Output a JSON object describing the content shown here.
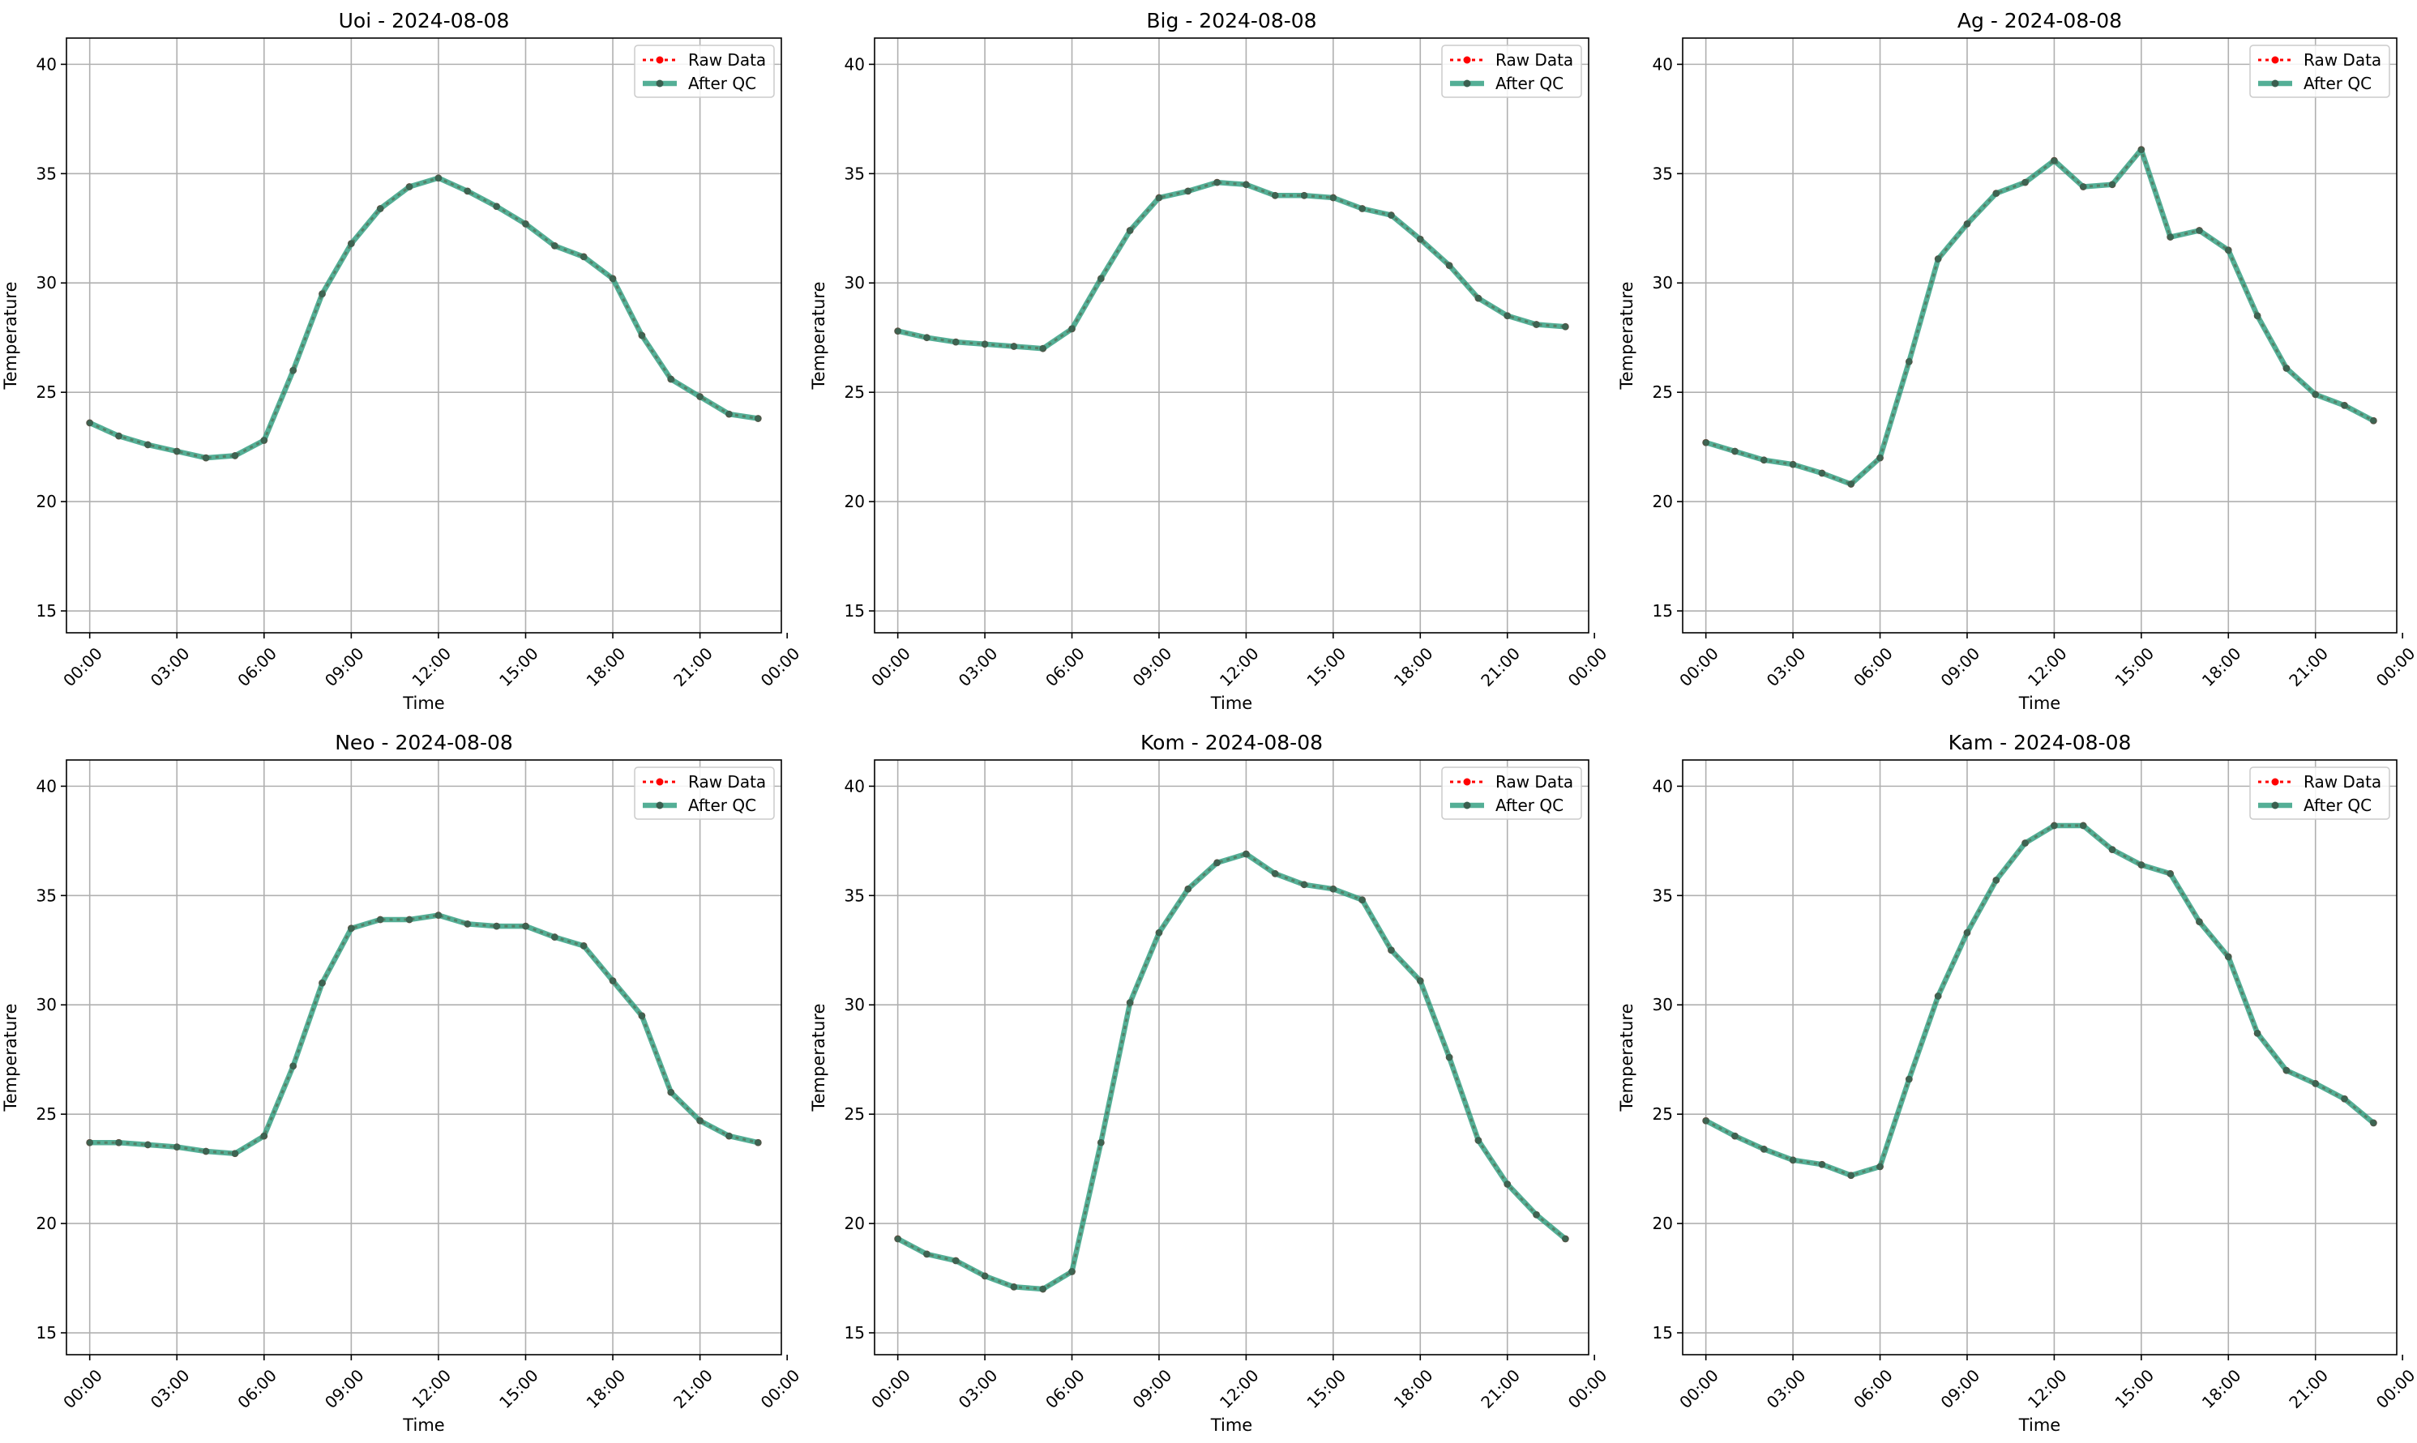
{
  "figure": {
    "colors": {
      "raw": "#ff0000",
      "qc": "#2e9e7f",
      "qc_marker": "#3a5f4f",
      "grid": "#b0b0b0",
      "legend_border": "#cccccc"
    },
    "legend": {
      "position": "upper right",
      "entries": [
        "Raw Data",
        "After QC"
      ]
    }
  },
  "chart_data": [
    {
      "type": "line",
      "title": "Uoi - 2024-08-08",
      "xlabel": "Time",
      "ylabel": "Temperature",
      "xlim": [
        -0.8,
        23.8
      ],
      "ylim": [
        14,
        41.2
      ],
      "x_ticks": [
        0,
        3,
        6,
        9,
        12,
        15,
        18,
        21,
        24
      ],
      "x_tick_labels": [
        "00:00",
        "03:00",
        "06:00",
        "09:00",
        "12:00",
        "15:00",
        "18:00",
        "21:00",
        "00:00"
      ],
      "y_ticks": [
        15,
        20,
        25,
        30,
        35,
        40
      ],
      "grid": true,
      "x": [
        0,
        1,
        2,
        3,
        4,
        5,
        6,
        7,
        8,
        9,
        10,
        11,
        12,
        13,
        14,
        15,
        16,
        17,
        18,
        19,
        20,
        21,
        22,
        23
      ],
      "series": [
        {
          "name": "Raw Data",
          "values": [
            23.6,
            23.0,
            22.6,
            22.3,
            22.0,
            22.1,
            22.8,
            26.0,
            29.5,
            31.8,
            33.4,
            34.4,
            34.8,
            34.2,
            33.5,
            32.7,
            31.7,
            31.2,
            30.2,
            27.6,
            25.6,
            24.8,
            24.0,
            23.8
          ]
        },
        {
          "name": "After QC",
          "values": [
            23.6,
            23.0,
            22.6,
            22.3,
            22.0,
            22.1,
            22.8,
            26.0,
            29.5,
            31.8,
            33.4,
            34.4,
            34.8,
            34.2,
            33.5,
            32.7,
            31.7,
            31.2,
            30.2,
            27.6,
            25.6,
            24.8,
            24.0,
            23.8
          ]
        }
      ]
    },
    {
      "type": "line",
      "title": "Big - 2024-08-08",
      "xlabel": "Time",
      "ylabel": "Temperature",
      "xlim": [
        -0.8,
        23.8
      ],
      "ylim": [
        14,
        41.2
      ],
      "x_ticks": [
        0,
        3,
        6,
        9,
        12,
        15,
        18,
        21,
        24
      ],
      "x_tick_labels": [
        "00:00",
        "03:00",
        "06:00",
        "09:00",
        "12:00",
        "15:00",
        "18:00",
        "21:00",
        "00:00"
      ],
      "y_ticks": [
        15,
        20,
        25,
        30,
        35,
        40
      ],
      "grid": true,
      "x": [
        0,
        1,
        2,
        3,
        4,
        5,
        6,
        7,
        8,
        9,
        10,
        11,
        12,
        13,
        14,
        15,
        16,
        17,
        18,
        19,
        20,
        21,
        22,
        23
      ],
      "series": [
        {
          "name": "Raw Data",
          "values": [
            27.8,
            27.5,
            27.3,
            27.2,
            27.1,
            27.0,
            27.9,
            30.2,
            32.4,
            33.9,
            34.2,
            34.6,
            34.5,
            34.0,
            34.0,
            33.9,
            33.4,
            33.1,
            32.0,
            30.8,
            29.3,
            28.5,
            28.1,
            28.0
          ]
        },
        {
          "name": "After QC",
          "values": [
            27.8,
            27.5,
            27.3,
            27.2,
            27.1,
            27.0,
            27.9,
            30.2,
            32.4,
            33.9,
            34.2,
            34.6,
            34.5,
            34.0,
            34.0,
            33.9,
            33.4,
            33.1,
            32.0,
            30.8,
            29.3,
            28.5,
            28.1,
            28.0
          ]
        }
      ]
    },
    {
      "type": "line",
      "title": "Ag - 2024-08-08",
      "xlabel": "Time",
      "ylabel": "Temperature",
      "xlim": [
        -0.8,
        23.8
      ],
      "ylim": [
        14,
        41.2
      ],
      "x_ticks": [
        0,
        3,
        6,
        9,
        12,
        15,
        18,
        21,
        24
      ],
      "x_tick_labels": [
        "00:00",
        "03:00",
        "06:00",
        "09:00",
        "12:00",
        "15:00",
        "18:00",
        "21:00",
        "00:00"
      ],
      "y_ticks": [
        15,
        20,
        25,
        30,
        35,
        40
      ],
      "grid": true,
      "x": [
        0,
        1,
        2,
        3,
        4,
        5,
        6,
        7,
        8,
        9,
        10,
        11,
        12,
        13,
        14,
        15,
        16,
        17,
        18,
        19,
        20,
        21,
        22,
        23
      ],
      "series": [
        {
          "name": "Raw Data",
          "values": [
            22.7,
            22.3,
            21.9,
            21.7,
            21.3,
            20.8,
            22.0,
            26.4,
            31.1,
            32.7,
            34.1,
            34.6,
            35.6,
            34.4,
            34.5,
            36.1,
            32.1,
            32.4,
            31.5,
            28.5,
            26.1,
            24.9,
            24.4,
            23.7
          ]
        },
        {
          "name": "After QC",
          "values": [
            22.7,
            22.3,
            21.9,
            21.7,
            21.3,
            20.8,
            22.0,
            26.4,
            31.1,
            32.7,
            34.1,
            34.6,
            35.6,
            34.4,
            34.5,
            36.1,
            32.1,
            32.4,
            31.5,
            28.5,
            26.1,
            24.9,
            24.4,
            23.7
          ]
        }
      ]
    },
    {
      "type": "line",
      "title": "Neo - 2024-08-08",
      "xlabel": "Time",
      "ylabel": "Temperature",
      "xlim": [
        -0.8,
        23.8
      ],
      "ylim": [
        14,
        41.2
      ],
      "x_ticks": [
        0,
        3,
        6,
        9,
        12,
        15,
        18,
        21,
        24
      ],
      "x_tick_labels": [
        "00:00",
        "03:00",
        "06:00",
        "09:00",
        "12:00",
        "15:00",
        "18:00",
        "21:00",
        "00:00"
      ],
      "y_ticks": [
        15,
        20,
        25,
        30,
        35,
        40
      ],
      "grid": true,
      "x": [
        0,
        1,
        2,
        3,
        4,
        5,
        6,
        7,
        8,
        9,
        10,
        11,
        12,
        13,
        14,
        15,
        16,
        17,
        18,
        19,
        20,
        21,
        22,
        23
      ],
      "series": [
        {
          "name": "Raw Data",
          "values": [
            23.7,
            23.7,
            23.6,
            23.5,
            23.3,
            23.2,
            24.0,
            27.2,
            31.0,
            33.5,
            33.9,
            33.9,
            34.1,
            33.7,
            33.6,
            33.6,
            33.1,
            32.7,
            31.1,
            29.5,
            26.0,
            24.7,
            24.0,
            23.7
          ]
        },
        {
          "name": "After QC",
          "values": [
            23.7,
            23.7,
            23.6,
            23.5,
            23.3,
            23.2,
            24.0,
            27.2,
            31.0,
            33.5,
            33.9,
            33.9,
            34.1,
            33.7,
            33.6,
            33.6,
            33.1,
            32.7,
            31.1,
            29.5,
            26.0,
            24.7,
            24.0,
            23.7
          ]
        }
      ]
    },
    {
      "type": "line",
      "title": "Kom - 2024-08-08",
      "xlabel": "Time",
      "ylabel": "Temperature",
      "xlim": [
        -0.8,
        23.8
      ],
      "ylim": [
        14,
        41.2
      ],
      "x_ticks": [
        0,
        3,
        6,
        9,
        12,
        15,
        18,
        21,
        24
      ],
      "x_tick_labels": [
        "00:00",
        "03:00",
        "06:00",
        "09:00",
        "12:00",
        "15:00",
        "18:00",
        "21:00",
        "00:00"
      ],
      "y_ticks": [
        15,
        20,
        25,
        30,
        35,
        40
      ],
      "grid": true,
      "x": [
        0,
        1,
        2,
        3,
        4,
        5,
        6,
        7,
        8,
        9,
        10,
        11,
        12,
        13,
        14,
        15,
        16,
        17,
        18,
        19,
        20,
        21,
        22,
        23
      ],
      "series": [
        {
          "name": "Raw Data",
          "values": [
            19.3,
            18.6,
            18.3,
            17.6,
            17.1,
            17.0,
            17.8,
            23.7,
            30.1,
            33.3,
            35.3,
            36.5,
            36.9,
            36.0,
            35.5,
            35.3,
            34.8,
            32.5,
            31.1,
            27.6,
            23.8,
            21.8,
            20.4,
            19.3
          ]
        },
        {
          "name": "After QC",
          "values": [
            19.3,
            18.6,
            18.3,
            17.6,
            17.1,
            17.0,
            17.8,
            23.7,
            30.1,
            33.3,
            35.3,
            36.5,
            36.9,
            36.0,
            35.5,
            35.3,
            34.8,
            32.5,
            31.1,
            27.6,
            23.8,
            21.8,
            20.4,
            19.3
          ]
        }
      ]
    },
    {
      "type": "line",
      "title": "Kam - 2024-08-08",
      "xlabel": "Time",
      "ylabel": "Temperature",
      "xlim": [
        -0.8,
        23.8
      ],
      "ylim": [
        14,
        41.2
      ],
      "x_ticks": [
        0,
        3,
        6,
        9,
        12,
        15,
        18,
        21,
        24
      ],
      "x_tick_labels": [
        "00:00",
        "03:00",
        "06:00",
        "09:00",
        "12:00",
        "15:00",
        "18:00",
        "21:00",
        "00:00"
      ],
      "y_ticks": [
        15,
        20,
        25,
        30,
        35,
        40
      ],
      "grid": true,
      "x": [
        0,
        1,
        2,
        3,
        4,
        5,
        6,
        7,
        8,
        9,
        10,
        11,
        12,
        13,
        14,
        15,
        16,
        17,
        18,
        19,
        20,
        21,
        22,
        23
      ],
      "series": [
        {
          "name": "Raw Data",
          "values": [
            24.7,
            24.0,
            23.4,
            22.9,
            22.7,
            22.2,
            22.6,
            26.6,
            30.4,
            33.3,
            35.7,
            37.4,
            38.2,
            38.2,
            37.1,
            36.4,
            36.0,
            33.8,
            32.2,
            28.7,
            27.0,
            26.4,
            25.7,
            24.6
          ]
        },
        {
          "name": "After QC",
          "values": [
            24.7,
            24.0,
            23.4,
            22.9,
            22.7,
            22.2,
            22.6,
            26.6,
            30.4,
            33.3,
            35.7,
            37.4,
            38.2,
            38.2,
            37.1,
            36.4,
            36.0,
            33.8,
            32.2,
            28.7,
            27.0,
            26.4,
            25.7,
            24.6
          ]
        }
      ]
    }
  ]
}
